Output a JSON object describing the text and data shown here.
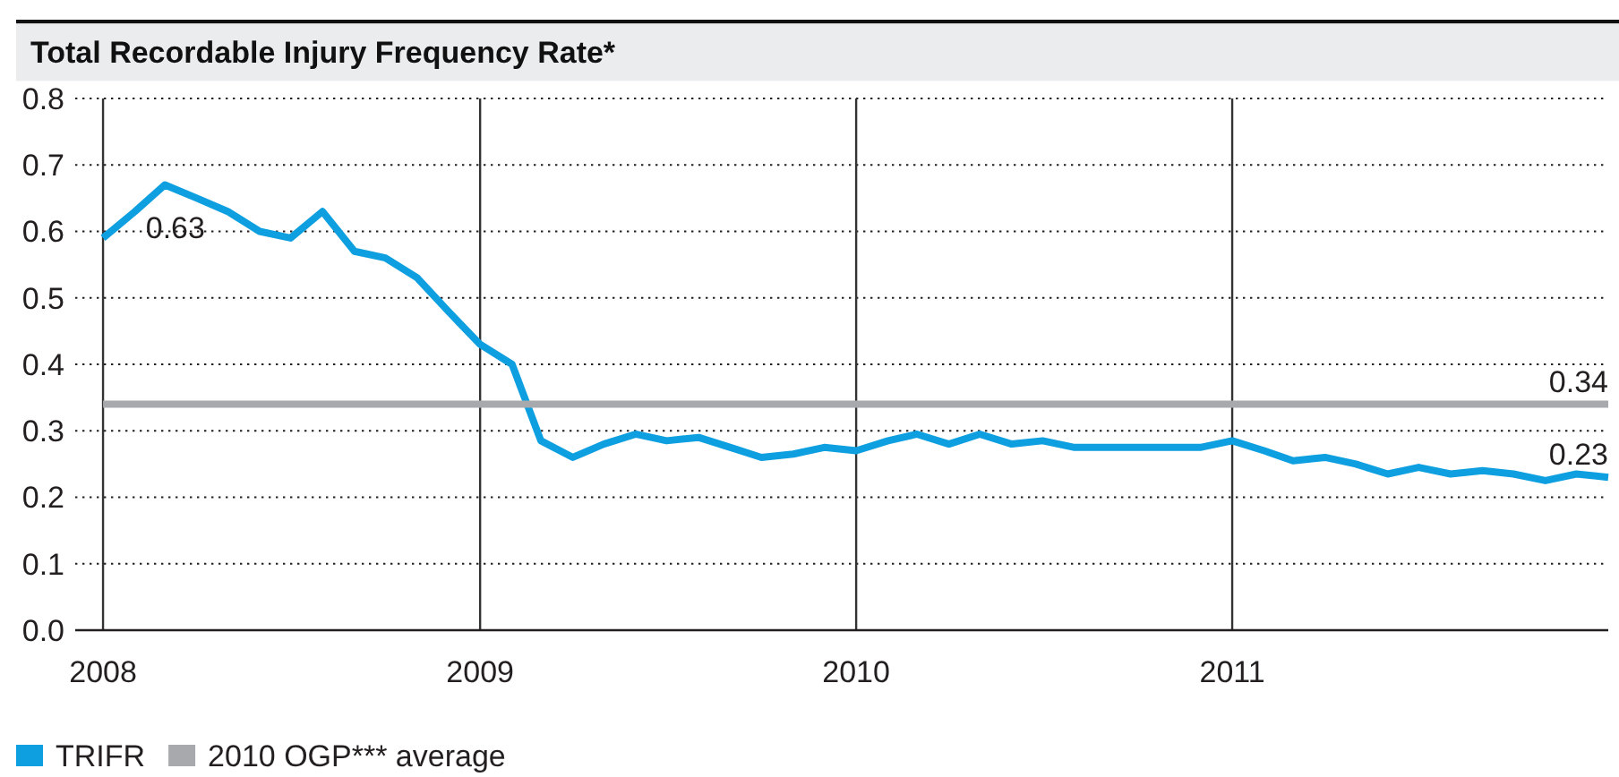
{
  "chart_data": {
    "type": "line",
    "title": "Total Recordable Injury Frequency Rate*",
    "x": [
      "2008-01",
      "2008-02",
      "2008-03",
      "2008-04",
      "2008-05",
      "2008-06",
      "2008-07",
      "2008-08",
      "2008-09",
      "2008-10",
      "2008-11",
      "2008-12",
      "2009-01",
      "2009-02",
      "2009-03",
      "2009-04",
      "2009-05",
      "2009-06",
      "2009-07",
      "2009-08",
      "2009-09",
      "2009-10",
      "2009-11",
      "2009-12",
      "2010-01",
      "2010-02",
      "2010-03",
      "2010-04",
      "2010-05",
      "2010-06",
      "2010-07",
      "2010-08",
      "2010-09",
      "2010-10",
      "2010-11",
      "2010-12",
      "2011-01",
      "2011-02",
      "2011-03",
      "2011-04",
      "2011-05",
      "2011-06",
      "2011-07",
      "2011-08",
      "2011-09",
      "2011-10",
      "2011-11",
      "2011-12",
      "2012-01"
    ],
    "series": [
      {
        "name": "TRIFR",
        "color": "#0d9fdf",
        "values": [
          0.59,
          0.63,
          0.67,
          0.65,
          0.63,
          0.6,
          0.59,
          0.63,
          0.57,
          0.56,
          0.53,
          0.48,
          0.43,
          0.4,
          0.285,
          0.26,
          0.28,
          0.295,
          0.285,
          0.29,
          0.275,
          0.26,
          0.265,
          0.275,
          0.27,
          0.285,
          0.295,
          0.28,
          0.295,
          0.28,
          0.285,
          0.275,
          0.275,
          0.275,
          0.275,
          0.275,
          0.285,
          0.27,
          0.255,
          0.26,
          0.25,
          0.235,
          0.245,
          0.235,
          0.24,
          0.235,
          0.225,
          0.235,
          0.23
        ],
        "value_labels": [
          null,
          "0.63",
          null,
          null,
          null,
          null,
          null,
          null,
          null,
          null,
          null,
          null,
          null,
          null,
          null,
          null,
          null,
          null,
          null,
          null,
          null,
          null,
          null,
          null,
          null,
          null,
          null,
          null,
          null,
          null,
          null,
          null,
          null,
          null,
          null,
          null,
          null,
          null,
          null,
          null,
          null,
          null,
          null,
          null,
          null,
          null,
          null,
          null,
          "0.23"
        ]
      },
      {
        "name": "2010 OGP*** average",
        "color": "#a7a9ac",
        "x": [
          "2008-01",
          "2012-01"
        ],
        "values": [
          0.34,
          0.34
        ],
        "value_labels": [
          null,
          "0.34"
        ]
      }
    ],
    "xlim": [
      "2007-12-05",
      "2012-01"
    ],
    "ylim": [
      0,
      0.8
    ],
    "xticks": [
      "2008",
      "2009",
      "2010",
      "2011"
    ],
    "yticks": [
      {
        "value": 0,
        "label": "0.0"
      },
      0.1,
      0.2,
      0.3,
      0.4,
      0.5,
      0.6,
      0.7,
      0.8
    ],
    "grid": true,
    "legend": "bottom",
    "line_style": "solid"
  }
}
